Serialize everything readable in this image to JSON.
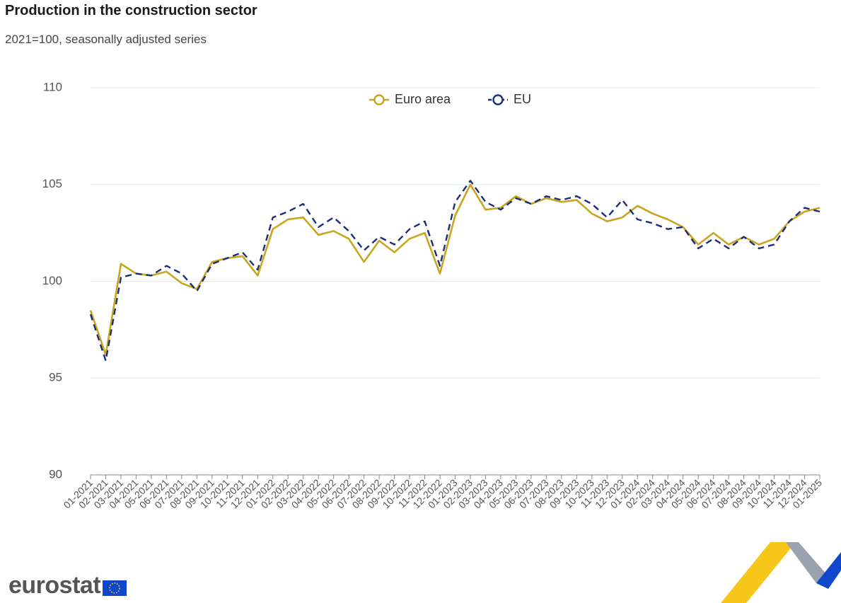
{
  "colors": {
    "euro_area": "#c9a51f",
    "eu": "#1c2e78",
    "grid": "#dce8f3",
    "text": "#555555"
  },
  "brand": {
    "logo_text": "eurostat",
    "logo_icon": "eu-flag-icon"
  },
  "chart_data": {
    "type": "line",
    "title": "Production in the construction sector",
    "subtitle": "2021=100, seasonally adjusted series",
    "xlabel": "",
    "ylabel": "",
    "ylim": [
      90,
      110
    ],
    "yticks": [
      90,
      95,
      100,
      105,
      110
    ],
    "grid": true,
    "legend_position": "top-center",
    "x": [
      "01-2021",
      "02-2021",
      "03-2021",
      "04-2021",
      "05-2021",
      "06-2021",
      "07-2021",
      "08-2021",
      "09-2021",
      "10-2021",
      "11-2021",
      "12-2021",
      "01-2022",
      "02-2022",
      "03-2022",
      "04-2022",
      "05-2022",
      "06-2022",
      "07-2022",
      "08-2022",
      "09-2022",
      "10-2022",
      "11-2022",
      "12-2022",
      "01-2023",
      "02-2023",
      "03-2023",
      "04-2023",
      "05-2023",
      "06-2023",
      "07-2023",
      "08-2023",
      "09-2023",
      "10-2023",
      "11-2023",
      "12-2023",
      "01-2024",
      "02-2024",
      "03-2024",
      "04-2024",
      "05-2024",
      "06-2024",
      "07-2024",
      "08-2024",
      "09-2024",
      "10-2024",
      "11-2024",
      "12-2024",
      "01-2025"
    ],
    "series": [
      {
        "name": "Euro area",
        "values": [
          98.5,
          96.2,
          100.9,
          100.4,
          100.3,
          100.5,
          99.9,
          99.6,
          101.0,
          101.2,
          101.3,
          100.3,
          102.7,
          103.2,
          103.3,
          102.4,
          102.6,
          102.2,
          101.0,
          102.1,
          101.5,
          102.2,
          102.5,
          100.4,
          103.4,
          105.0,
          103.7,
          103.8,
          104.4,
          104.0,
          104.3,
          104.1,
          104.2,
          103.5,
          103.1,
          103.3,
          103.9,
          103.5,
          103.2,
          102.8,
          101.9,
          102.5,
          101.9,
          102.3,
          101.9,
          102.2,
          103.1,
          103.6,
          103.8
        ]
      },
      {
        "name": "EU",
        "values": [
          98.3,
          95.9,
          100.2,
          100.4,
          100.3,
          100.8,
          100.4,
          99.5,
          100.9,
          101.2,
          101.5,
          100.6,
          103.3,
          103.6,
          104.0,
          102.8,
          103.3,
          102.6,
          101.6,
          102.3,
          101.9,
          102.7,
          103.1,
          100.8,
          104.1,
          105.2,
          104.1,
          103.7,
          104.3,
          104.0,
          104.4,
          104.2,
          104.4,
          104.0,
          103.3,
          104.2,
          103.2,
          103.0,
          102.7,
          102.8,
          101.7,
          102.2,
          101.7,
          102.3,
          101.7,
          101.9,
          103.1,
          103.8,
          103.6
        ]
      }
    ]
  }
}
